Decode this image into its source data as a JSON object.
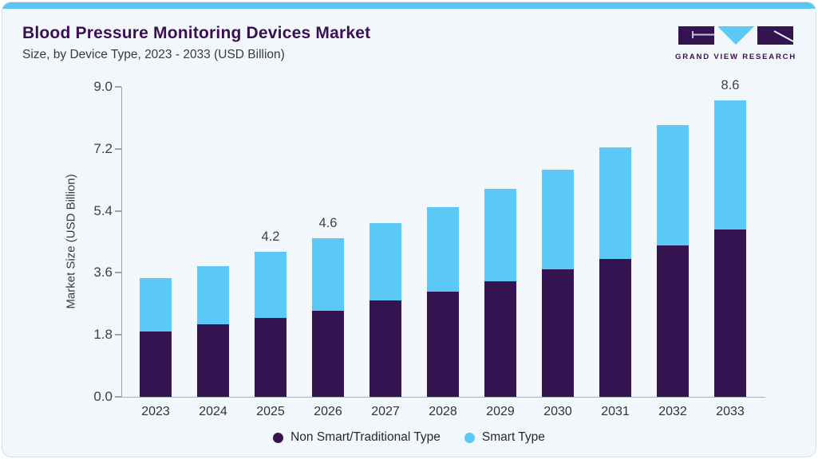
{
  "page": {
    "title": "Blood Pressure Monitoring Devices Market",
    "subtitle": "Size, by Device Type, 2023 - 2033 (USD Billion)"
  },
  "logo": {
    "brand": "GRAND VIEW RESEARCH"
  },
  "colors": {
    "accent_strip": "#5BC7F0",
    "non_smart": "#341450",
    "smart": "#5BC8F5",
    "title_purple": "#3A1053",
    "card_bg": "#F2F7FB",
    "axis_gray": "#9AA2AC"
  },
  "chart_data": {
    "type": "bar",
    "stacked": true,
    "title": "Blood Pressure Monitoring Devices Market Size, by Device Type, 2023 - 2033 (USD Billion)",
    "xlabel": "",
    "ylabel": "Market Size (USD Billion)",
    "ylim": [
      0,
      9.0
    ],
    "ytick_labels": [
      "0.0",
      "1.8",
      "3.6",
      "5.4",
      "7.2",
      "9.0"
    ],
    "grid": false,
    "legend_position": "bottom",
    "categories": [
      "2023",
      "2024",
      "2025",
      "2026",
      "2027",
      "2028",
      "2029",
      "2030",
      "2031",
      "2032",
      "2033"
    ],
    "series": [
      {
        "name": "Non Smart/Traditional Type",
        "color": "#341450",
        "values": [
          1.9,
          2.1,
          2.3,
          2.5,
          2.8,
          3.05,
          3.35,
          3.7,
          4.0,
          4.4,
          4.85
        ]
      },
      {
        "name": "Smart Type",
        "color": "#5BC8F5",
        "values": [
          1.55,
          1.7,
          1.9,
          2.1,
          2.25,
          2.45,
          2.7,
          2.9,
          3.25,
          3.5,
          3.75
        ]
      }
    ],
    "totals": [
      3.45,
      3.8,
      4.2,
      4.6,
      5.05,
      5.5,
      6.05,
      6.6,
      7.25,
      7.9,
      8.6
    ],
    "bar_total_labels": {
      "2025": "4.2",
      "2026": "4.6",
      "2033": "8.6"
    }
  }
}
